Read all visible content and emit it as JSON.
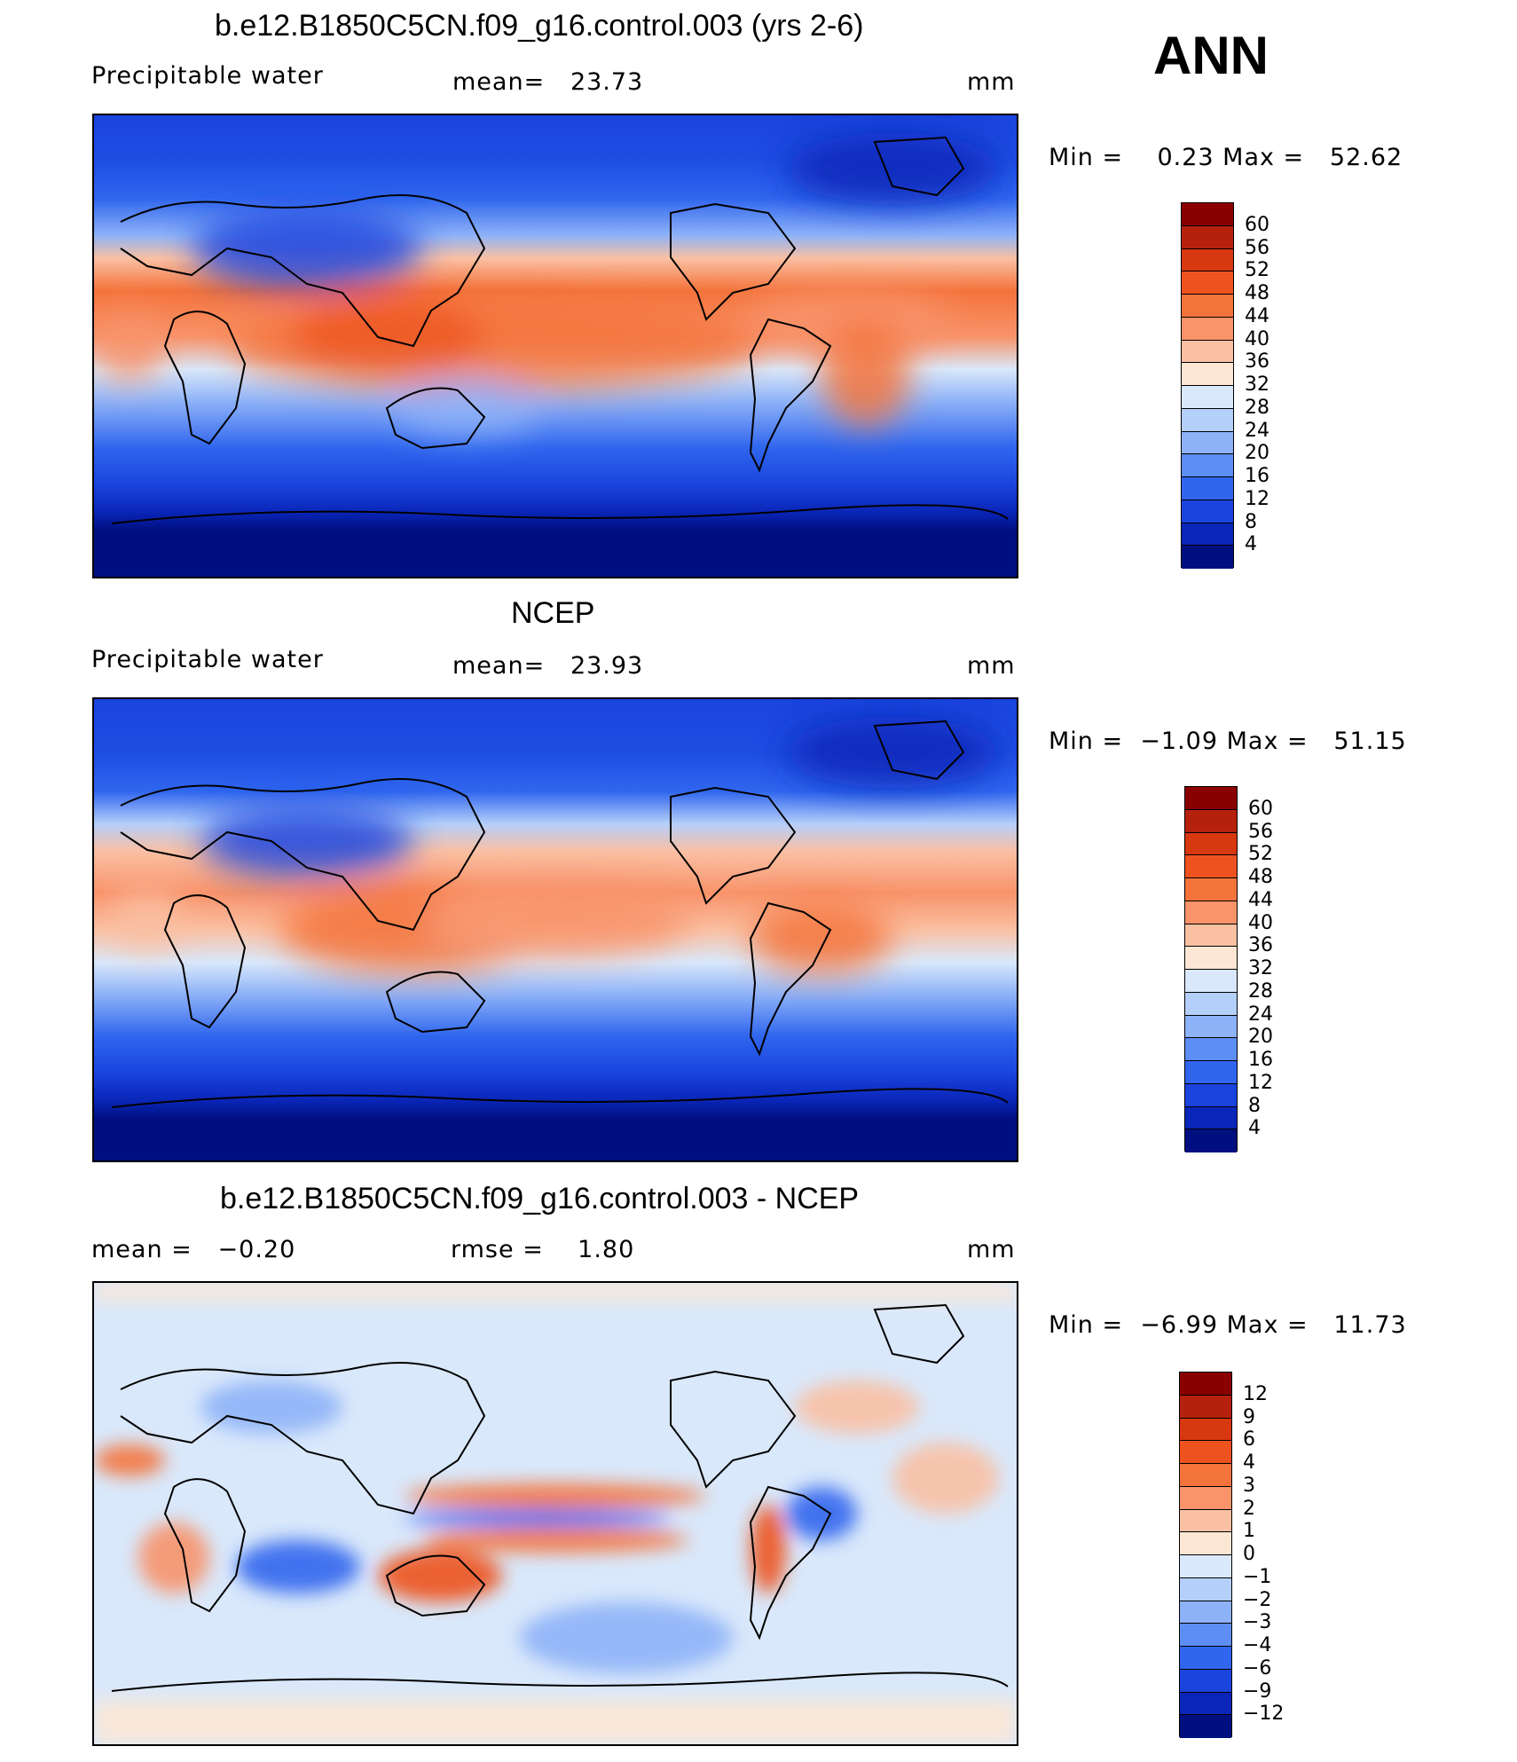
{
  "season": "ANN",
  "panels": [
    {
      "title": "b.e12.B1850C5CN.f09_g16.control.003 (yrs 2-6)",
      "variable": "Precipitable water",
      "stat1": "mean=   23.73",
      "stat2": "",
      "units": "mm",
      "minmax": "Min =    0.23 Max =   52.62",
      "colorbar": {
        "labels": [
          "60",
          "56",
          "52",
          "48",
          "44",
          "40",
          "36",
          "32",
          "28",
          "24",
          "20",
          "16",
          "12",
          "8",
          "4"
        ],
        "colors": [
          "#8a0000",
          "#b5210c",
          "#d8380f",
          "#ee531f",
          "#f4733b",
          "#f8936a",
          "#fac0a3",
          "#fde7d4",
          "#d9e8fb",
          "#b4cffa",
          "#8eb2f8",
          "#5d8ef3",
          "#3066ee",
          "#1a44de",
          "#0a26b8",
          "#000f80"
        ]
      }
    },
    {
      "title": "NCEP",
      "variable": "Precipitable water",
      "stat1": "mean=   23.93",
      "stat2": "",
      "units": "mm",
      "minmax": "Min =  −1.09 Max =   51.15",
      "colorbar": {
        "labels": [
          "60",
          "56",
          "52",
          "48",
          "44",
          "40",
          "36",
          "32",
          "28",
          "24",
          "20",
          "16",
          "12",
          "8",
          "4"
        ],
        "colors": [
          "#8a0000",
          "#b5210c",
          "#d8380f",
          "#ee531f",
          "#f4733b",
          "#f8936a",
          "#fac0a3",
          "#fde7d4",
          "#d9e8fb",
          "#b4cffa",
          "#8eb2f8",
          "#5d8ef3",
          "#3066ee",
          "#1a44de",
          "#0a26b8",
          "#000f80"
        ]
      }
    },
    {
      "title": "b.e12.B1850C5CN.f09_g16.control.003 - NCEP",
      "variable": "mean =   −0.20",
      "stat1": "rmse =    1.80",
      "stat2": "",
      "units": "mm",
      "minmax": "Min =  −6.99 Max =   11.73",
      "colorbar": {
        "labels": [
          "12",
          "9",
          "6",
          "4",
          "3",
          "2",
          "1",
          "0",
          "−1",
          "−2",
          "−3",
          "−4",
          "−6",
          "−9",
          "−12"
        ],
        "colors": [
          "#8a0000",
          "#b5210c",
          "#d8380f",
          "#ee531f",
          "#f4733b",
          "#f8936a",
          "#fac0a3",
          "#fde7d4",
          "#d9e8fb",
          "#b4cffa",
          "#8eb2f8",
          "#5d8ef3",
          "#3066ee",
          "#1a44de",
          "#0a26b8",
          "#000f80"
        ]
      }
    }
  ]
}
